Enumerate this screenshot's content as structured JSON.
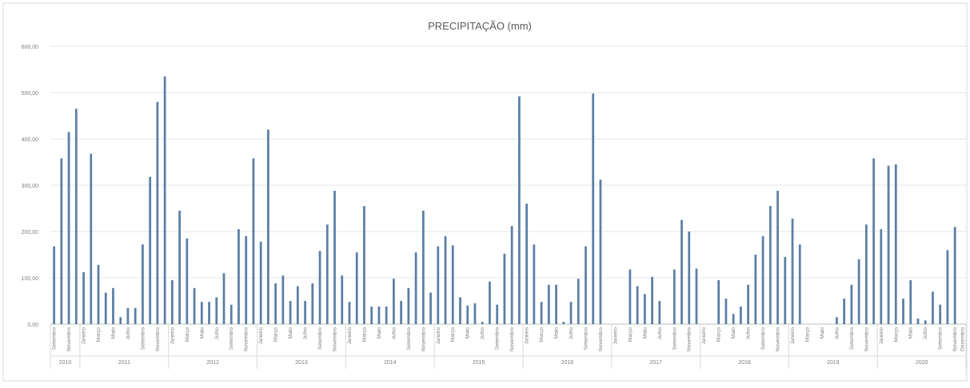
{
  "chart_data": {
    "type": "bar",
    "title": "PRECIPITAÇÃO (mm)",
    "xlabel": "",
    "ylabel": "",
    "ylim": [
      0,
      600
    ],
    "y_ticks": [
      "0,00",
      "100,00",
      "200,00",
      "300,00",
      "400,00",
      "500,00",
      "600,00"
    ],
    "grid": true,
    "bar_color": "#5b7fa6",
    "years": [
      {
        "label": "2010",
        "months": 4
      },
      {
        "label": "2011",
        "months": 12
      },
      {
        "label": "2012",
        "months": 12
      },
      {
        "label": "2013",
        "months": 12
      },
      {
        "label": "2014",
        "months": 12
      },
      {
        "label": "2015",
        "months": 12
      },
      {
        "label": "2016",
        "months": 12
      },
      {
        "label": "2017",
        "months": 12
      },
      {
        "label": "2018",
        "months": 12
      },
      {
        "label": "2019",
        "months": 12
      },
      {
        "label": "2020",
        "months": 12
      }
    ],
    "month_labels": [
      "Janeiro",
      "Fevereiro",
      "Março",
      "Abril",
      "Maio",
      "Junho",
      "Julho",
      "Agosto",
      "Setembro",
      "Outubro",
      "Novembro",
      "Dezembro"
    ],
    "values": [
      168,
      358,
      415,
      465,
      112,
      368,
      128,
      68,
      78,
      15,
      35,
      35,
      172,
      318,
      480,
      535,
      95,
      245,
      185,
      78,
      48,
      48,
      58,
      110,
      42,
      205,
      190,
      358,
      178,
      420,
      88,
      105,
      50,
      82,
      50,
      88,
      158,
      215,
      288,
      105,
      48,
      155,
      255,
      38,
      38,
      38,
      98,
      50,
      78,
      155,
      245,
      68,
      168,
      190,
      170,
      58,
      40,
      45,
      5,
      92,
      42,
      152,
      212,
      492,
      260,
      172,
      48,
      85,
      85,
      5,
      48,
      98,
      168,
      498,
      312,
      0,
      0,
      0,
      118,
      82,
      65,
      102,
      50,
      0,
      118,
      225,
      200,
      120,
      0,
      0,
      95,
      55,
      22,
      38,
      85,
      150,
      190,
      255,
      288,
      145,
      228,
      172,
      0,
      0,
      0,
      0,
      15,
      55,
      85,
      140,
      215,
      358,
      205,
      342,
      345,
      55,
      95,
      12,
      8,
      70,
      42,
      160,
      210,
      0
    ]
  }
}
